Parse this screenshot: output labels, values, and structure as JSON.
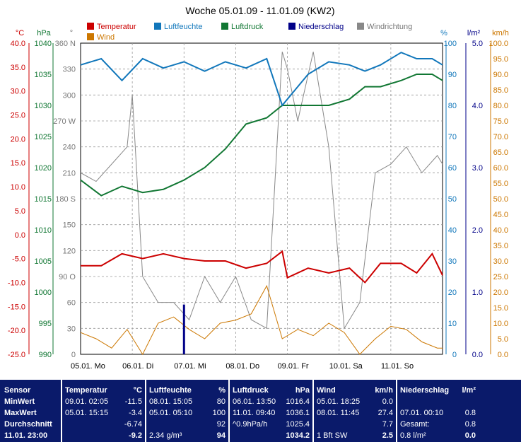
{
  "chart_data": {
    "type": "line",
    "title": "Woche 05.01.09 - 11.01.09 (KW2)",
    "legend": [
      {
        "name": "Temperatur",
        "color": "#cc0000"
      },
      {
        "name": "Wind",
        "color": "#cc7700"
      },
      {
        "name": "Luftfeuchte",
        "color": "#1177bb"
      },
      {
        "name": "Luftdruck",
        "color": "#117733"
      },
      {
        "name": "Niederschlag",
        "color": "#000088"
      },
      {
        "name": "Windrichtung",
        "color": "#888888"
      }
    ],
    "axes": {
      "temp": {
        "unit": "°C",
        "min": -25,
        "max": 40,
        "ticks": [
          "40.0",
          "35.0",
          "30.0",
          "25.0",
          "20.0",
          "15.0",
          "10.0",
          "5.0",
          "0.0",
          "-5.0",
          "-10.0",
          "-15.0",
          "-20.0",
          "-25.0"
        ]
      },
      "pressure": {
        "unit": "hPa",
        "min": 990,
        "max": 1040,
        "ticks": [
          "1040",
          "1035",
          "1030",
          "1025",
          "1020",
          "1015",
          "1010",
          "1005",
          "1000",
          "995",
          "990"
        ]
      },
      "direction": {
        "unit": "°",
        "min": 0,
        "max": 360,
        "ticks": [
          "360 N",
          "330",
          "300",
          "270 W",
          "240",
          "210",
          "180 S",
          "150",
          "120",
          "90 O",
          "60",
          "30",
          "0"
        ]
      },
      "humidity": {
        "unit": "%",
        "min": 0,
        "max": 100,
        "ticks": [
          "100",
          "90",
          "80",
          "70",
          "60",
          "50",
          "40",
          "30",
          "20",
          "10",
          "0"
        ]
      },
      "rain": {
        "unit": "l/m²",
        "min": 0,
        "max": 5,
        "ticks": [
          "5.0",
          "4.0",
          "3.0",
          "2.0",
          "1.0",
          "0.0"
        ]
      },
      "wind": {
        "unit": "km/h",
        "min": 0,
        "max": 100,
        "ticks": [
          "100.0",
          "95.0",
          "90.0",
          "85.0",
          "80.0",
          "75.0",
          "70.0",
          "65.0",
          "60.0",
          "55.0",
          "50.0",
          "45.0",
          "40.0",
          "35.0",
          "30.0",
          "25.0",
          "20.0",
          "15.0",
          "10.0",
          "5.0",
          "0.0"
        ]
      }
    },
    "x_range_days": 7,
    "x_labels": [
      "05.01.  Mo",
      "06.01.  Di",
      "07.01.  Mi",
      "08.01.  Do",
      "09.01.  Fr",
      "10.01.  Sa",
      "11.01.  So"
    ],
    "grid": true,
    "series": {
      "temperature": {
        "x": [
          0,
          0.4,
          0.8,
          1.2,
          1.6,
          2.0,
          2.4,
          2.8,
          3.2,
          3.6,
          3.9,
          4.0,
          4.4,
          4.8,
          5.2,
          5.5,
          5.8,
          6.2,
          6.5,
          6.8,
          7.0
        ],
        "y": [
          -6.5,
          -6.5,
          -4,
          -5,
          -4,
          -5,
          -5.5,
          -5.5,
          -7,
          -6,
          -3.5,
          -9,
          -7,
          -8,
          -7,
          -10,
          -6,
          -6,
          -8,
          -4,
          -8.5
        ]
      },
      "humidity": {
        "x": [
          0,
          0.4,
          0.8,
          1.2,
          1.6,
          2.0,
          2.4,
          2.8,
          3.2,
          3.6,
          3.9,
          4.0,
          4.4,
          4.8,
          5.2,
          5.5,
          5.8,
          6.2,
          6.5,
          6.8,
          7.0
        ],
        "y": [
          93,
          95,
          88,
          95,
          92,
          94,
          91,
          94,
          92,
          95,
          80,
          82,
          90,
          94,
          93,
          91,
          93,
          97,
          95,
          95,
          93
        ]
      },
      "pressure": {
        "x": [
          0,
          0.4,
          0.8,
          1.2,
          1.6,
          2.0,
          2.4,
          2.8,
          3.2,
          3.6,
          3.9,
          4.0,
          4.4,
          4.8,
          5.2,
          5.5,
          5.8,
          6.2,
          6.5,
          6.8,
          7.0
        ],
        "y": [
          1018,
          1015.5,
          1017,
          1016,
          1016.5,
          1018,
          1020,
          1023,
          1027,
          1028,
          1030,
          1030,
          1030,
          1030,
          1031,
          1033,
          1033,
          1034,
          1035,
          1035,
          1034
        ]
      },
      "wind": {
        "x": [
          0,
          0.3,
          0.6,
          0.9,
          1.2,
          1.5,
          1.8,
          2.1,
          2.4,
          2.7,
          3.0,
          3.3,
          3.6,
          3.9,
          4.2,
          4.5,
          4.8,
          5.1,
          5.4,
          5.7,
          6.0,
          6.3,
          6.6,
          6.9,
          7.0
        ],
        "y": [
          7,
          5,
          2,
          8,
          0,
          10,
          12,
          8,
          5,
          10,
          11,
          13,
          22,
          5,
          8,
          6,
          10,
          7,
          0,
          5,
          9,
          8,
          4,
          2,
          2
        ]
      },
      "rain": {
        "x": [
          2.0
        ],
        "y": [
          0.8
        ]
      },
      "direction": {
        "x": [
          0,
          0.3,
          0.6,
          0.9,
          1.0,
          1.2,
          1.5,
          1.8,
          2.1,
          2.4,
          2.7,
          3.0,
          3.3,
          3.6,
          3.9,
          4.0,
          4.2,
          4.5,
          4.8,
          5.1,
          5.4,
          5.7,
          6.0,
          6.3,
          6.6,
          6.9,
          7.0
        ],
        "y": [
          210,
          200,
          220,
          240,
          300,
          90,
          60,
          60,
          40,
          90,
          60,
          90,
          40,
          30,
          350,
          330,
          270,
          350,
          240,
          30,
          60,
          210,
          220,
          240,
          210,
          230,
          220
        ]
      }
    }
  },
  "summary": {
    "sensor": {
      "header": "Sensor",
      "rows": [
        "MinWert",
        "MaxWert",
        "Durchschnitt",
        "11.01. 23:00"
      ]
    },
    "temperatur": {
      "header": "Temperatur",
      "unit": "°C",
      "rows": [
        [
          "09.01.  02:05",
          "-11.5"
        ],
        [
          "05.01.  15:15",
          "-3.4"
        ],
        [
          "",
          "-6.74"
        ],
        [
          "",
          "-9.2"
        ]
      ]
    },
    "luftfeuchte": {
      "header": "Luftfeuchte",
      "unit": "%",
      "rows": [
        [
          "08.01.  15:05",
          "80"
        ],
        [
          "05.01.  05:10",
          "100"
        ],
        [
          "",
          "92"
        ],
        [
          "2.34 g/m³",
          "94"
        ]
      ]
    },
    "luftdruck": {
      "header": "Luftdruck",
      "unit": "hPa",
      "rows": [
        [
          "06.01.  13:50",
          "1016.4"
        ],
        [
          "11.01.  09:40",
          "1036.1"
        ],
        [
          "^0.9hPa/h",
          "1025.4"
        ],
        [
          "",
          "1034.2"
        ]
      ]
    },
    "wind": {
      "header": "Wind",
      "unit": "km/h",
      "rows": [
        [
          "05.01.  18:25",
          "0.0"
        ],
        [
          "08.01.  11:45",
          "27.4"
        ],
        [
          "",
          "7.7"
        ],
        [
          "1 Bft SW",
          "2.5"
        ]
      ]
    },
    "niederschlag": {
      "header": "Niederschlag",
      "unit": "l/m²",
      "rows": [
        [
          "",
          ""
        ],
        [
          "07.01.  00:10",
          "0.8"
        ],
        [
          "Gesamt:",
          "0.8"
        ],
        [
          "0.8 l/m²",
          "0.0"
        ]
      ]
    }
  }
}
